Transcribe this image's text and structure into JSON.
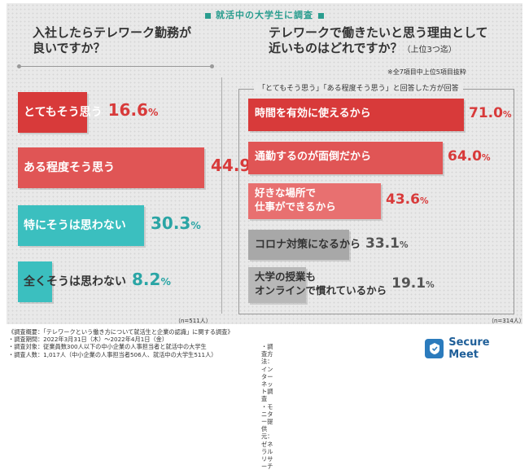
{
  "header": {
    "title": "就活中の大学生に調査"
  },
  "left_question": {
    "title_line1": "入社したらテレワーク勤務が",
    "title_line2": "良いですか？",
    "n_label": "（n=511人）"
  },
  "right_question": {
    "title_line1": "テレワークで働きたいと思う理由として",
    "title_line2": "近いものはどれですか？",
    "title_suffix": "（上位3つ迄）",
    "note": "※全7項目中上位5項目抜粋",
    "bracket_label": "「とてもそう思う」「ある程度そう思う」と回答した方が回答",
    "n_label": "（n=314人）"
  },
  "chart_data": [
    {
      "type": "bar",
      "orientation": "horizontal",
      "title": "入社したらテレワーク勤務が良いですか？",
      "categories": [
        "とてもそう思う",
        "ある程度そう思う",
        "特にそうは思わない",
        "全くそうは思わない"
      ],
      "values": [
        16.6,
        44.9,
        30.3,
        8.2
      ],
      "value_labels": [
        "16.6",
        "44.9",
        "30.3",
        "8.2"
      ],
      "unit": "%",
      "colors": [
        "#d83a3a",
        "#e05555",
        "#3bbfbf",
        "#3bbfbf"
      ],
      "n": "511人"
    },
    {
      "type": "bar",
      "orientation": "horizontal",
      "title": "テレワークで働きたいと思う理由として近いものはどれですか？（上位3つ迄）",
      "categories": [
        "時間を有効に使えるから",
        "通勤するのが面倒だから",
        "好きな場所で\n仕事ができるから",
        "コロナ対策になるから",
        "大学の授業も\nオンラインで慣れているから"
      ],
      "values": [
        71.0,
        64.0,
        43.6,
        33.1,
        19.1
      ],
      "value_labels": [
        "71.0",
        "64.0",
        "43.6",
        "33.1",
        "19.1"
      ],
      "unit": "%",
      "colors": [
        "#d83a3a",
        "#e05555",
        "#e87070",
        "#a8a8a8",
        "#b8b8b8"
      ],
      "n": "314人"
    }
  ],
  "footer": {
    "survey_overview": "《調査概要：「テレワークという働き方について就活生と企業の認識」に関する調査》",
    "period": "・調査期間：2022年3月31日（木）〜2022年4月1日（金）",
    "target": "・調査対象：従業員数300人以下の中小企業の人事担当者と就活中の大学生",
    "count": "・調査人数：1,017人（中小企業の人事担当者506人、就活中の大学生511人）",
    "method": "・調査方法：インターネット調査",
    "provider": "・モニター提供元：ゼネラルリサーチ"
  },
  "logo": {
    "text": "Secure Meet"
  }
}
